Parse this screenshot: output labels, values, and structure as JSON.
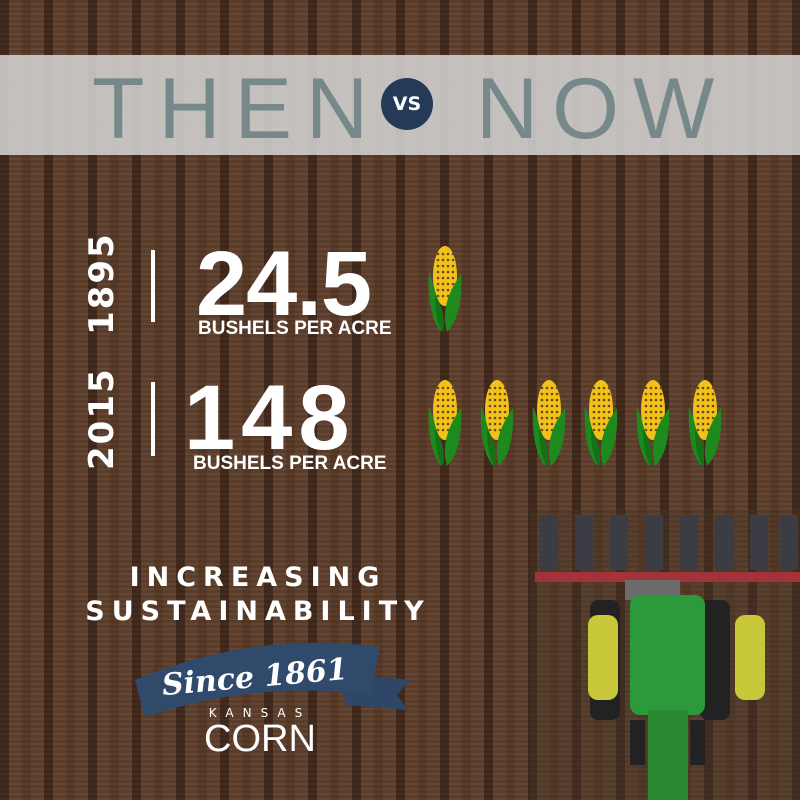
{
  "header": {
    "then": "THEN",
    "vs": "VS",
    "now": "NOW"
  },
  "rows": [
    {
      "year": "1895",
      "value": "24.5",
      "unit": "BUSHELS PER ACRE",
      "icon": "corn-icon",
      "icon_count": 1
    },
    {
      "year": "2015",
      "value": "148",
      "unit": "BUSHELS PER ACRE",
      "icon": "corn-icon",
      "icon_count": 6
    }
  ],
  "tagline": {
    "line1": "INCREASING",
    "line2": "SUSTAINABILITY"
  },
  "logo": {
    "banner": "Since 1861",
    "kansas": "KANSAS",
    "corn": "CORN"
  },
  "colors": {
    "band_text": "#76888a",
    "navy": "#253a57",
    "corn_yellow": "#f2c21b",
    "leaf_green": "#1e8a1e"
  }
}
